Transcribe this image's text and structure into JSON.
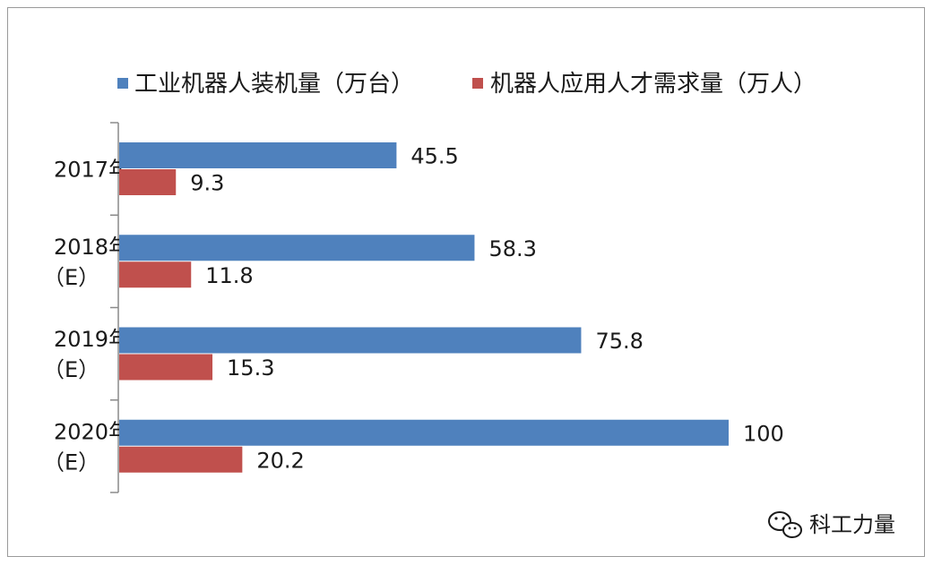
{
  "chart_data": {
    "type": "bar",
    "orientation": "horizontal",
    "categories": [
      [
        "2017年"
      ],
      [
        "2018年",
        "（E）"
      ],
      [
        "2019年",
        "（E）"
      ],
      [
        "2020年",
        "（E）"
      ]
    ],
    "series": [
      {
        "name": "工业机器人装机量（万台）",
        "color": "#4f81bd",
        "values": [
          45.5,
          58.3,
          75.8,
          100
        ]
      },
      {
        "name": "机器人应用人才需求量（万人）",
        "color": "#c0504d",
        "values": [
          9.3,
          11.8,
          15.3,
          20.2
        ]
      }
    ],
    "value_labels": [
      [
        "45.5",
        "58.3",
        "75.8",
        "100"
      ],
      [
        "9.3",
        "11.8",
        "15.3",
        "20.2"
      ]
    ],
    "xlim": [
      0,
      100
    ],
    "grid": false,
    "legend_position": "top"
  },
  "watermark": {
    "text": "科工力量",
    "icon": "wechat-icon"
  }
}
